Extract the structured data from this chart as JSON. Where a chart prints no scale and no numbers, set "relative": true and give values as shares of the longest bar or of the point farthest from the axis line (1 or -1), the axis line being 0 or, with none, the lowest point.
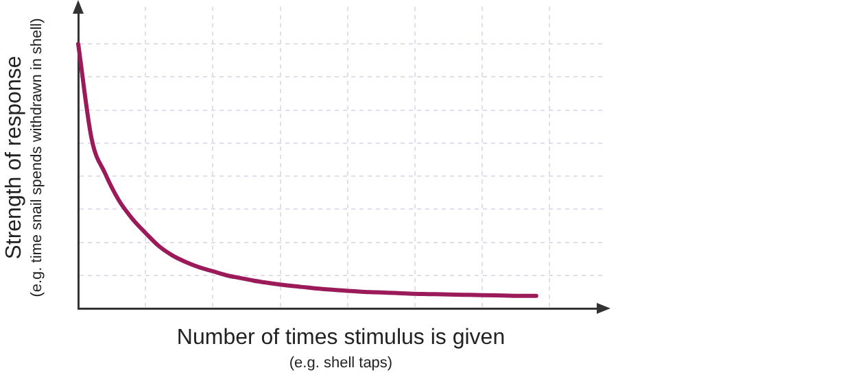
{
  "chart_data": {
    "type": "line",
    "relative": true,
    "xlabel": "Number of times stimulus is given",
    "ylabel": "Strength of response",
    "annotations": [
      "(e.g. shell taps)",
      "(e.g. time snail spends withdrawn in shell)"
    ],
    "categories": [
      null,
      null,
      null,
      null,
      null,
      null,
      null,
      null,
      null,
      null,
      null,
      null,
      null,
      null,
      null,
      null,
      null,
      null,
      null,
      null,
      null,
      null,
      null,
      null,
      null,
      null,
      null,
      null,
      null,
      null,
      null,
      null,
      null,
      null,
      null,
      null,
      null,
      null,
      null,
      null
    ],
    "series": [
      {
        "color": "#9b1b5a",
        "values": [
          1.0,
          0.64,
          0.51,
          0.41,
          0.34,
          0.285,
          0.235,
          0.2,
          0.175,
          0.155,
          0.14,
          0.125,
          0.115,
          0.105,
          0.097,
          0.09,
          0.084,
          0.079,
          0.074,
          0.07,
          0.066,
          0.063,
          0.061,
          0.059,
          0.057,
          0.055,
          0.054,
          0.053,
          0.052,
          0.051,
          0.05,
          0.049,
          0.048,
          0.047,
          0.047,
          null,
          null,
          null,
          null,
          null
        ]
      }
    ],
    "grid": true,
    "marker": "none",
    "line_style": "solid",
    "legend": false
  }
}
